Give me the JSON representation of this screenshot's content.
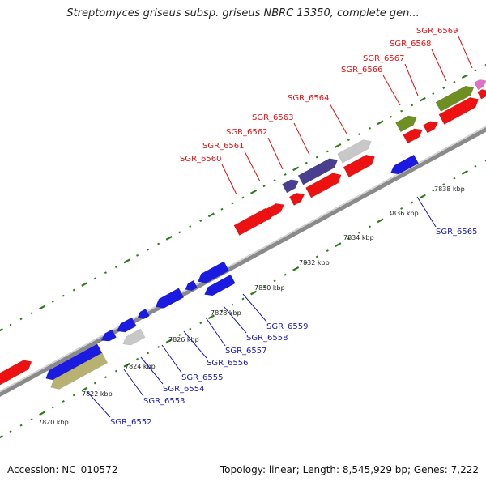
{
  "header": {
    "title": "Streptomyces griseus subsp. griseus NBRC 13350, complete gen..."
  },
  "footer": {
    "accession": "Accession: NC_010572",
    "summary": "Topology: linear; Length: 8,545,929 bp; Genes: 7,222"
  },
  "colors": {
    "red": "#ee1111",
    "blue": "#1a1ae0",
    "darkslate": "#4a3f8f",
    "gray": "#c8c8c8",
    "olive": "#6f8f22",
    "khaki": "#b8b272",
    "pink": "#e070c8",
    "backbone": "#8a8a8a",
    "ticks": "#2e7d1a",
    "label_top": "#dd1111",
    "label_bottom": "#1a1aaa"
  },
  "scale_labels": [
    "7820 kbp",
    "7822 kbp",
    "7824 kbp",
    "7826 kbp",
    "7828 kbp",
    "7830 kbp",
    "7832 kbp",
    "7834 kbp",
    "7836 kbp",
    "7838 kbp"
  ],
  "genes_top": [
    {
      "id": "g_r1",
      "color": "red"
    },
    {
      "id": "g_r2",
      "color": "red"
    },
    {
      "id": "g_r3",
      "color": "red"
    },
    {
      "id": "g_r4",
      "color": "red"
    },
    {
      "id": "g_r5",
      "color": "red"
    },
    {
      "id": "g_r6",
      "color": "red"
    },
    {
      "id": "g_r7",
      "color": "red"
    },
    {
      "id": "g_r8",
      "color": "red"
    },
    {
      "id": "g_r9",
      "color": "red"
    }
  ],
  "gene_labels_top": [
    {
      "label": "SGR_6560"
    },
    {
      "label": "SGR_6561"
    },
    {
      "label": "SGR_6562"
    },
    {
      "label": "SGR_6563"
    },
    {
      "label": "SGR_6564"
    },
    {
      "label": "SGR_6566"
    },
    {
      "label": "SGR_6567"
    },
    {
      "label": "SGR_6568"
    },
    {
      "label": "SGR_6569"
    }
  ],
  "gene_labels_bottom": [
    {
      "label": "SGR_6552"
    },
    {
      "label": "SGR_6553"
    },
    {
      "label": "SGR_6554"
    },
    {
      "label": "SGR_6555"
    },
    {
      "label": "SGR_6556"
    },
    {
      "label": "SGR_6557"
    },
    {
      "label": "SGR_6558"
    },
    {
      "label": "SGR_6559"
    },
    {
      "label": "SGR_6565"
    }
  ]
}
